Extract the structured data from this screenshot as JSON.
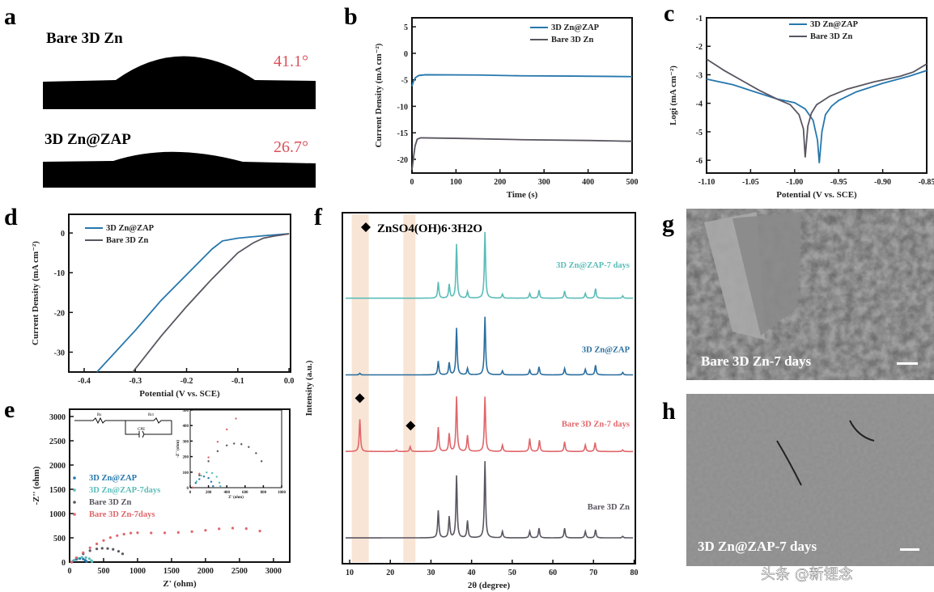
{
  "panel_labels": [
    "a",
    "b",
    "c",
    "d",
    "e",
    "f",
    "g",
    "h"
  ],
  "panel_a": {
    "samples": [
      {
        "name": "Bare 3D Zn",
        "contact_angle": "41.1°"
      },
      {
        "name": "3D Zn@ZAP",
        "contact_angle": "26.7°"
      }
    ],
    "angle_color": "#d9515a"
  },
  "panel_g": {
    "caption": "Bare 3D Zn-7 days"
  },
  "panel_h": {
    "caption": "3D Zn@ZAP-7 days"
  },
  "watermark": "头条 @新锂念",
  "chart_data": [
    {
      "panel": "b",
      "type": "line",
      "xlabel": "Time (s)",
      "ylabel": "Current Density (mA cm⁻²)",
      "xlim": [
        0,
        500
      ],
      "ylim": [
        -22.6,
        6.7
      ],
      "xticks": [
        "0",
        "100",
        "200",
        "300",
        "400",
        "500"
      ],
      "yticks": [
        "5",
        "0",
        "-5",
        "-10",
        "-15",
        "-20"
      ],
      "legend": "top-right",
      "series": [
        {
          "name": "3D Zn@ZAP",
          "color": "#2677ad",
          "points": [
            [
              0,
              -6.2
            ],
            [
              3,
              -5.4
            ],
            [
              8,
              -4.6
            ],
            [
              15,
              -4.2
            ],
            [
              30,
              -4.05
            ],
            [
              150,
              -4.1
            ],
            [
              250,
              -4.25
            ],
            [
              360,
              -4.3
            ],
            [
              500,
              -4.4
            ]
          ]
        },
        {
          "name": "Bare 3D Zn",
          "color": "#5a5560",
          "points": [
            [
              0,
              -22
            ],
            [
              3,
              -20
            ],
            [
              7,
              -17.5
            ],
            [
              12,
              -16.2
            ],
            [
              20,
              -15.95
            ],
            [
              100,
              -16.05
            ],
            [
              250,
              -16.3
            ],
            [
              400,
              -16.45
            ],
            [
              500,
              -16.6
            ]
          ]
        }
      ]
    },
    {
      "panel": "c",
      "type": "line",
      "xlabel": "Potential (V vs. SCE)",
      "ylabel": "Logi (mA cm⁻²)",
      "xlim": [
        -1.1,
        -0.85
      ],
      "ylim": [
        -6.45,
        -1
      ],
      "xticks": [
        "-1.10",
        "-1.05",
        "-1.00",
        "-0.95",
        "-0.90",
        "-0.85"
      ],
      "yticks": [
        "-1",
        "-2",
        "-3",
        "-4",
        "-5",
        "-6"
      ],
      "legend": "top-right",
      "series": [
        {
          "name": "3D Zn@ZAP",
          "color": "#2677ad",
          "points": [
            [
              -1.1,
              -3.15
            ],
            [
              -1.07,
              -3.35
            ],
            [
              -1.05,
              -3.55
            ],
            [
              -1.02,
              -3.85
            ],
            [
              -1.0,
              -3.98
            ],
            [
              -0.988,
              -4.2
            ],
            [
              -0.979,
              -4.6
            ],
            [
              -0.974,
              -5.3
            ],
            [
              -0.972,
              -6.1
            ],
            [
              -0.969,
              -5.0
            ],
            [
              -0.965,
              -4.4
            ],
            [
              -0.958,
              -4.1
            ],
            [
              -0.95,
              -3.9
            ],
            [
              -0.93,
              -3.6
            ],
            [
              -0.9,
              -3.3
            ],
            [
              -0.87,
              -3.05
            ],
            [
              -0.85,
              -2.85
            ]
          ]
        },
        {
          "name": "Bare 3D Zn",
          "color": "#5a5560",
          "points": [
            [
              -1.1,
              -2.45
            ],
            [
              -1.08,
              -2.85
            ],
            [
              -1.06,
              -3.2
            ],
            [
              -1.04,
              -3.55
            ],
            [
              -1.02,
              -3.85
            ],
            [
              -1.005,
              -4.05
            ],
            [
              -0.995,
              -4.4
            ],
            [
              -0.99,
              -4.9
            ],
            [
              -0.988,
              -5.9
            ],
            [
              -0.985,
              -4.8
            ],
            [
              -0.981,
              -4.35
            ],
            [
              -0.975,
              -4.05
            ],
            [
              -0.96,
              -3.75
            ],
            [
              -0.94,
              -3.5
            ],
            [
              -0.91,
              -3.25
            ],
            [
              -0.88,
              -3.05
            ],
            [
              -0.865,
              -2.9
            ],
            [
              -0.85,
              -2.62
            ]
          ]
        }
      ]
    },
    {
      "panel": "d",
      "type": "line",
      "xlabel": "Potential (V vs. SCE)",
      "ylabel": "Current Density (mA cm⁻²)",
      "xlim": [
        -0.43,
        0.003
      ],
      "ylim": [
        -35,
        4.7
      ],
      "xticks": [
        "-0.4",
        "-0.3",
        "-0.2",
        "-0.1",
        "0.0"
      ],
      "yticks": [
        "0",
        "-10",
        "-20",
        "-30"
      ],
      "legend": "top-left",
      "series": [
        {
          "name": "3D Zn@ZAP",
          "color": "#2677ad",
          "points": [
            [
              -0.375,
              -35
            ],
            [
              -0.3,
              -24.5
            ],
            [
              -0.25,
              -17
            ],
            [
              -0.2,
              -10.5
            ],
            [
              -0.15,
              -4
            ],
            [
              -0.13,
              -2
            ],
            [
              -0.1,
              -1.3
            ],
            [
              -0.05,
              -0.7
            ],
            [
              0,
              -0.2
            ]
          ]
        },
        {
          "name": "Bare 3D Zn",
          "color": "#5a5560",
          "points": [
            [
              -0.305,
              -35
            ],
            [
              -0.25,
              -26
            ],
            [
              -0.2,
              -18.5
            ],
            [
              -0.15,
              -11.5
            ],
            [
              -0.1,
              -5
            ],
            [
              -0.07,
              -2.5
            ],
            [
              -0.05,
              -1.3
            ],
            [
              -0.03,
              -0.8
            ],
            [
              0,
              -0.2
            ]
          ]
        }
      ]
    },
    {
      "panel": "e",
      "type": "scatter",
      "xlabel": "Z' (ohm)",
      "ylabel": "-Z'' (ohm)",
      "xlim": [
        0,
        3240
      ],
      "ylim": [
        0,
        3150
      ],
      "xticks": [
        "0",
        "500",
        "1000",
        "1500",
        "2000",
        "2500",
        "3000"
      ],
      "yticks": [
        "0",
        "500",
        "1000",
        "1500",
        "2000",
        "2500",
        "3000"
      ],
      "legend": "center-left",
      "circuit_labels": [
        "Rs",
        "Rct",
        "CPE"
      ],
      "inset": {
        "xlabel": "Z' (ohm)",
        "ylabel": "-Z'' (ohm)",
        "xlim": [
          0,
          1000
        ],
        "ylim": [
          0,
          500
        ],
        "xticks": [
          "0",
          "200",
          "400",
          "600",
          "800",
          "1000"
        ],
        "yticks": [
          "0",
          "100",
          "200",
          "300",
          "400",
          "500"
        ]
      },
      "series": [
        {
          "name": "3D Zn@ZAP",
          "color": "#2677ad",
          "points": [
            [
              30,
              0
            ],
            [
              60,
              30
            ],
            [
              100,
              55
            ],
            [
              150,
              72
            ],
            [
              200,
              62
            ],
            [
              230,
              38
            ],
            [
              250,
              10
            ]
          ]
        },
        {
          "name": "3D Zn@ZAP-7days",
          "color": "#5bbcb8",
          "points": [
            [
              30,
              0
            ],
            [
              70,
              40
            ],
            [
              120,
              78
            ],
            [
              180,
              98
            ],
            [
              240,
              94
            ],
            [
              290,
              70
            ],
            [
              320,
              32
            ],
            [
              330,
              10
            ]
          ]
        },
        {
          "name": "Bare 3D Zn",
          "color": "#5a5560",
          "points": [
            [
              30,
              0
            ],
            [
              100,
              80
            ],
            [
              200,
              170
            ],
            [
              300,
              235
            ],
            [
              400,
              272
            ],
            [
              480,
              284
            ],
            [
              560,
              280
            ],
            [
              640,
              262
            ],
            [
              720,
              222
            ],
            [
              780,
              170
            ]
          ]
        },
        {
          "name": "Bare 3D Zn-7days",
          "color": "#e0666a",
          "points": [
            [
              30,
              0
            ],
            [
              100,
              90
            ],
            [
              200,
              195
            ],
            [
              300,
              295
            ],
            [
              400,
              375
            ],
            [
              500,
              445
            ],
            [
              600,
              505
            ],
            [
              700,
              545
            ],
            [
              800,
              575
            ],
            [
              900,
              598
            ],
            [
              1000,
              605
            ],
            [
              1200,
              600
            ],
            [
              1400,
              603
            ],
            [
              1600,
              610
            ],
            [
              1800,
              628
            ],
            [
              2000,
              655
            ],
            [
              2200,
              685
            ],
            [
              2400,
              700
            ],
            [
              2600,
              690
            ],
            [
              2800,
              640
            ]
          ]
        }
      ]
    },
    {
      "panel": "f",
      "type": "line",
      "xlabel": "2θ (degree)",
      "ylabel": "Intensity (a.u.)",
      "xlim": [
        8.2,
        80.3
      ],
      "ylim": [
        0,
        435
      ],
      "xticks": [
        "10",
        "20",
        "30",
        "40",
        "50",
        "60",
        "70",
        "80"
      ],
      "marker_legend": "ZnSO4(OH)6·3H2O",
      "highlight_bands": [
        [
          10.5,
          14.7
        ],
        [
          23.2,
          26.2
        ]
      ],
      "band_color": "#f6dcc8",
      "marker_peaks": [
        12.5,
        25.0
      ],
      "series": [
        {
          "name": "3D Zn@ZAP-7 days",
          "color": "#5bbcb8",
          "baseline": 329,
          "peaks": [
            [
              31.8,
              20
            ],
            [
              34.5,
              17
            ],
            [
              36.3,
              67
            ],
            [
              39.0,
              8
            ],
            [
              43.3,
              82
            ],
            [
              47.6,
              5
            ],
            [
              54.3,
              6
            ],
            [
              56.6,
              10
            ],
            [
              62.9,
              9
            ],
            [
              68.0,
              6
            ],
            [
              70.5,
              12
            ],
            [
              77.2,
              3
            ]
          ]
        },
        {
          "name": "3D Zn@ZAP",
          "color": "#2a6e9e",
          "baseline": 234,
          "peaks": [
            [
              12.5,
              2
            ],
            [
              31.8,
              17
            ],
            [
              34.5,
              15
            ],
            [
              36.3,
              58
            ],
            [
              39.0,
              8
            ],
            [
              43.3,
              72
            ],
            [
              47.6,
              5
            ],
            [
              54.3,
              6
            ],
            [
              56.6,
              10
            ],
            [
              62.9,
              8
            ],
            [
              68.0,
              7
            ],
            [
              70.5,
              12
            ],
            [
              77.2,
              3
            ]
          ]
        },
        {
          "name": "Bare 3D Zn-7 days",
          "color": "#e0666a",
          "baseline": 139,
          "peaks": [
            [
              12.5,
              40
            ],
            [
              21.5,
              2
            ],
            [
              24.9,
              6
            ],
            [
              31.8,
              30
            ],
            [
              34.5,
              22
            ],
            [
              36.3,
              68
            ],
            [
              39.0,
              20
            ],
            [
              43.3,
              68
            ],
            [
              47.6,
              8
            ],
            [
              54.3,
              16
            ],
            [
              56.7,
              14
            ],
            [
              62.9,
              12
            ],
            [
              68.0,
              8
            ],
            [
              70.4,
              11
            ],
            [
              77.2,
              2
            ]
          ]
        },
        {
          "name": "Bare 3D Zn",
          "color": "#5a5560",
          "baseline": 32,
          "peaks": [
            [
              31.8,
              34
            ],
            [
              34.5,
              26
            ],
            [
              36.3,
              77
            ],
            [
              39.0,
              21
            ],
            [
              43.3,
              95
            ],
            [
              47.6,
              8
            ],
            [
              54.3,
              8
            ],
            [
              56.6,
              12
            ],
            [
              62.9,
              12
            ],
            [
              68.0,
              8
            ],
            [
              70.5,
              10
            ],
            [
              77.2,
              2
            ]
          ]
        }
      ]
    }
  ]
}
